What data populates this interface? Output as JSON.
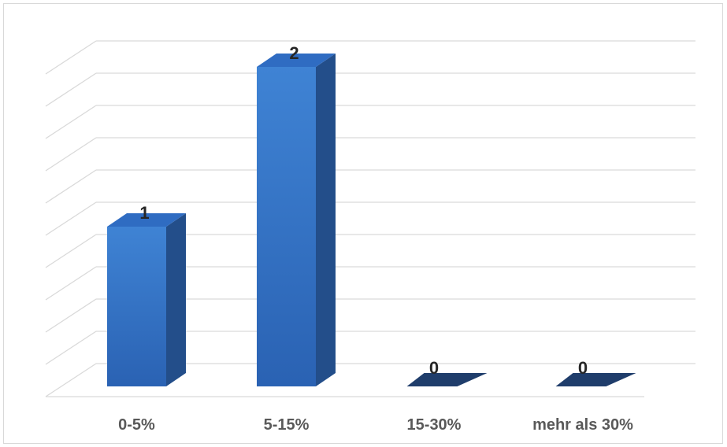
{
  "chart_data": {
    "type": "bar",
    "style": "3d-column",
    "categories": [
      "0-5%",
      "5-15%",
      "15-30%",
      "mehr als 30%"
    ],
    "values": [
      1,
      2,
      0,
      0
    ],
    "title": "",
    "xlabel": "",
    "ylabel": "",
    "ylim": [
      0,
      2.2
    ],
    "grid": true,
    "legend": "none",
    "data_labels": [
      "1",
      "2",
      "0",
      "0"
    ],
    "colors": {
      "bar_front_top": "#3f83d4",
      "bar_front_bottom": "#2a62b3",
      "bar_side": "#234e8a",
      "bar_top": "#2f6cc2",
      "bar_zero": "#1f3d6b",
      "gridline": "#d9d9d9",
      "tick_text": "#595959",
      "label_text": "#262626"
    }
  }
}
